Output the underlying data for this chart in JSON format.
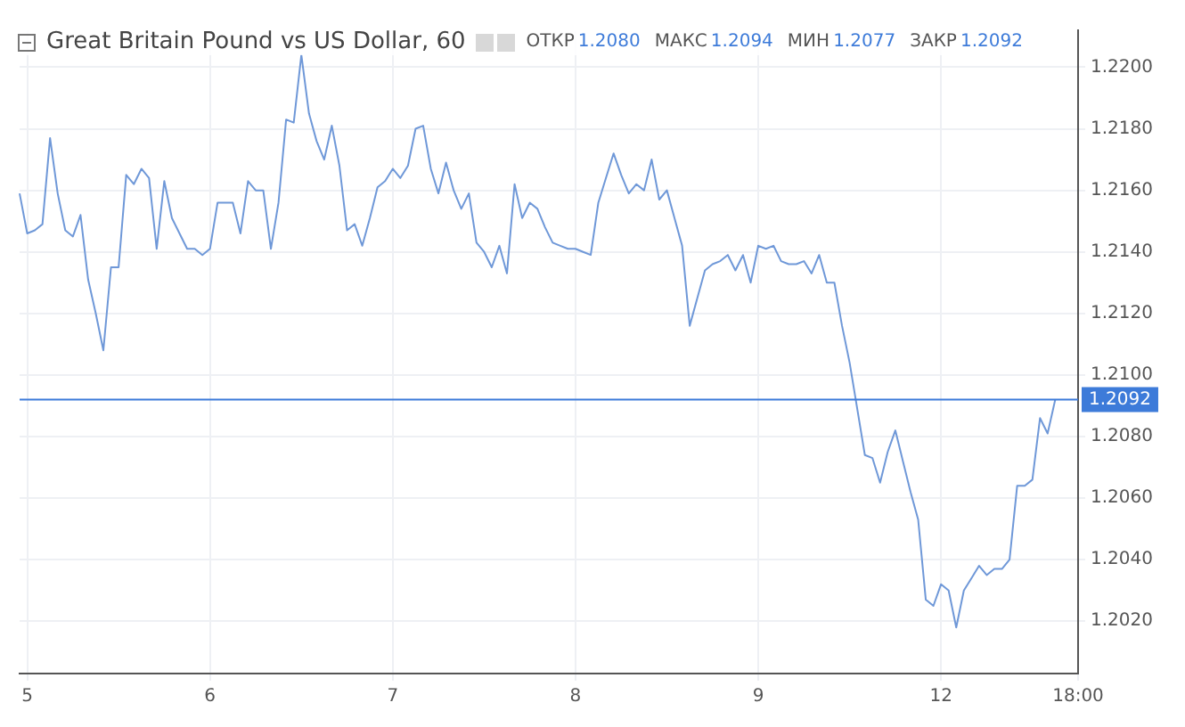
{
  "chart_data": {
    "type": "line",
    "title": "Great Britain Pound vs US Dollar, 60",
    "subtitle": "ОТКР 1.2080 МАКС 1.2094 МИН 1.2077 ЗАКР 1.2092",
    "categories": [
      null,
      "5",
      null,
      null,
      null,
      null,
      null,
      null,
      null,
      null,
      null,
      null,
      null,
      null,
      null,
      null,
      null,
      null,
      null,
      null,
      null,
      null,
      null,
      null,
      null,
      "6",
      null,
      null,
      null,
      null,
      null,
      null,
      null,
      null,
      null,
      null,
      null,
      null,
      null,
      null,
      null,
      null,
      null,
      null,
      null,
      null,
      null,
      null,
      null,
      "7",
      null,
      null,
      null,
      null,
      null,
      null,
      null,
      null,
      null,
      null,
      null,
      null,
      null,
      null,
      null,
      null,
      null,
      null,
      null,
      null,
      null,
      null,
      null,
      "8",
      null,
      null,
      null,
      null,
      null,
      null,
      null,
      null,
      null,
      null,
      null,
      null,
      null,
      null,
      null,
      null,
      null,
      null,
      null,
      null,
      null,
      null,
      null,
      "9",
      null,
      null,
      null,
      null,
      null,
      null,
      null,
      null,
      null,
      null,
      null,
      null,
      null,
      null,
      null,
      null,
      null,
      null,
      null,
      null,
      null,
      null,
      null,
      "12",
      null,
      null,
      null,
      null,
      null,
      null,
      null,
      null,
      null,
      null,
      null,
      null,
      null,
      null,
      null,
      null,
      null,
      "18:00"
    ],
    "series": [
      {
        "color": "#6f98d8",
        "values": [
          1.2159,
          1.2146,
          1.2147,
          1.2149,
          1.2177,
          1.2159,
          1.2147,
          1.2145,
          1.2152,
          1.2131,
          1.212,
          1.2108,
          1.2135,
          1.2135,
          1.2165,
          1.2162,
          1.2167,
          1.2164,
          1.2141,
          1.2163,
          1.2151,
          1.2146,
          1.2141,
          1.2141,
          1.2139,
          1.2141,
          1.2156,
          1.2156,
          1.2156,
          1.2146,
          1.2163,
          1.216,
          1.216,
          1.2141,
          1.2156,
          1.2183,
          1.2182,
          1.2204,
          1.2185,
          1.2176,
          1.217,
          1.2181,
          1.2168,
          1.2147,
          1.2149,
          1.2142,
          1.2151,
          1.2161,
          1.2163,
          1.2167,
          1.2164,
          1.2168,
          1.218,
          1.2181,
          1.2167,
          1.2159,
          1.2169,
          1.216,
          1.2154,
          1.2159,
          1.2143,
          1.214,
          1.2135,
          1.2142,
          1.2133,
          1.2162,
          1.2151,
          1.2156,
          1.2154,
          1.2148,
          1.2143,
          1.2142,
          1.2141,
          1.2141,
          1.214,
          1.2139,
          1.2156,
          1.2164,
          1.2172,
          1.2165,
          1.2159,
          1.2162,
          1.216,
          1.217,
          1.2157,
          1.216,
          1.2151,
          1.2142,
          1.2116,
          1.2125,
          1.2134,
          1.2136,
          1.2137,
          1.2139,
          1.2134,
          1.2139,
          1.213,
          1.2142,
          1.2141,
          1.2142,
          1.2137,
          1.2136,
          1.2136,
          1.2137,
          1.2133,
          1.2139,
          1.213,
          1.213,
          1.2116,
          1.2104,
          1.2089,
          1.2074,
          1.2073,
          1.2065,
          1.2075,
          1.2082,
          1.2072,
          1.2062,
          1.2053,
          1.2027,
          1.2025,
          1.2032,
          1.203,
          1.2018,
          1.203,
          1.2034,
          1.2038,
          1.2035,
          1.2037,
          1.2037,
          1.204,
          1.2064,
          1.2064,
          1.2066,
          1.2086,
          1.2081,
          1.2092,
          null,
          null,
          null
        ]
      }
    ],
    "ylim": [
      1.2003,
      1.2212
    ],
    "yticks": [
      {
        "value": 1.202,
        "label": "1.2020"
      },
      {
        "value": 1.204,
        "label": "1.2040"
      },
      {
        "value": 1.206,
        "label": "1.2060"
      },
      {
        "value": 1.208,
        "label": "1.2080"
      },
      {
        "value": 1.21,
        "label": "1.2100"
      },
      {
        "value": 1.212,
        "label": "1.2120"
      },
      {
        "value": 1.214,
        "label": "1.2140"
      },
      {
        "value": 1.216,
        "label": "1.2160"
      },
      {
        "value": 1.218,
        "label": "1.2180"
      },
      {
        "value": 1.22,
        "label": "1.2200"
      }
    ],
    "ref_lines": [
      {
        "axis": "y",
        "value": 1.2092,
        "label": "1.2092",
        "color": "#3d7bd9"
      }
    ],
    "grid": true,
    "legend": false,
    "marker": "none",
    "line_style": "solid"
  }
}
